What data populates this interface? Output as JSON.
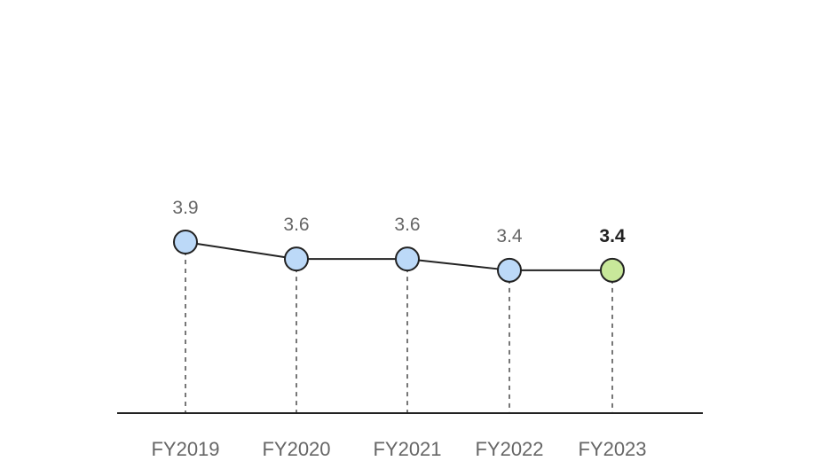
{
  "chart_data": {
    "type": "line",
    "categories": [
      "FY2019",
      "FY2020",
      "FY2021",
      "FY2022",
      "FY2023"
    ],
    "values": [
      3.9,
      3.6,
      3.6,
      3.4,
      3.4
    ],
    "value_labels": [
      "3.9",
      "3.6",
      "3.6",
      "3.4",
      "3.4"
    ],
    "highlight_index": 4,
    "ylim": [
      0,
      5.5
    ],
    "grid": false,
    "colors": {
      "point": "#bcd9f8",
      "highlight_point": "#c8e89a",
      "point_stroke": "#222222",
      "line": "#222222",
      "axis": "#222222",
      "dropline": "#777777"
    }
  }
}
